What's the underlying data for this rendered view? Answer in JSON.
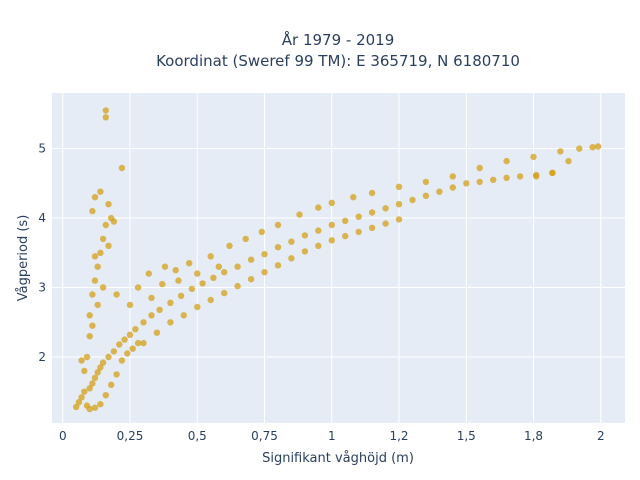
{
  "chart_data": {
    "type": "scatter",
    "title": [
      "År 1979 - 2019",
      "Koordinat (Sweref 99 TM): E 365719, N 6180710"
    ],
    "xlabel": "Signifikant våghöjd (m)",
    "ylabel": "Vågperiod (s)",
    "xlim": [
      -0.04,
      2.09
    ],
    "ylim": [
      1.05,
      5.8
    ],
    "xticks": [
      0,
      0.25,
      0.5,
      0.75,
      1,
      1.25,
      1.5,
      1.75,
      2
    ],
    "xtick_labels": [
      "0",
      "0,25",
      "0,5",
      "0,75",
      "1",
      "1,2",
      "1,5",
      "1,8",
      "2"
    ],
    "yticks": [
      2,
      3,
      4,
      5
    ],
    "ytick_labels": [
      "2",
      "3",
      "4",
      "5"
    ],
    "grid": true,
    "colors": {
      "marker": "#d4a017",
      "background": "#e5ecf6",
      "grid": "#ffffff"
    },
    "points": [
      [
        0.05,
        1.28
      ],
      [
        0.06,
        1.35
      ],
      [
        0.07,
        1.42
      ],
      [
        0.08,
        1.5
      ],
      [
        0.09,
        1.3
      ],
      [
        0.1,
        1.55
      ],
      [
        0.11,
        1.62
      ],
      [
        0.12,
        1.7
      ],
      [
        0.13,
        1.78
      ],
      [
        0.14,
        1.85
      ],
      [
        0.15,
        1.92
      ],
      [
        0.17,
        2.0
      ],
      [
        0.19,
        2.08
      ],
      [
        0.21,
        2.18
      ],
      [
        0.23,
        2.25
      ],
      [
        0.25,
        2.32
      ],
      [
        0.27,
        2.4
      ],
      [
        0.3,
        2.5
      ],
      [
        0.33,
        2.6
      ],
      [
        0.36,
        2.68
      ],
      [
        0.4,
        2.78
      ],
      [
        0.44,
        2.88
      ],
      [
        0.48,
        2.98
      ],
      [
        0.52,
        3.06
      ],
      [
        0.56,
        3.14
      ],
      [
        0.6,
        3.22
      ],
      [
        0.65,
        3.3
      ],
      [
        0.7,
        3.4
      ],
      [
        0.75,
        3.48
      ],
      [
        0.8,
        3.58
      ],
      [
        0.85,
        3.66
      ],
      [
        0.9,
        3.75
      ],
      [
        0.95,
        3.82
      ],
      [
        1.0,
        3.9
      ],
      [
        1.05,
        3.96
      ],
      [
        1.1,
        4.02
      ],
      [
        1.15,
        4.08
      ],
      [
        1.2,
        4.14
      ],
      [
        1.25,
        4.2
      ],
      [
        1.3,
        4.26
      ],
      [
        1.35,
        4.32
      ],
      [
        1.4,
        4.38
      ],
      [
        1.45,
        4.44
      ],
      [
        1.5,
        4.5
      ],
      [
        1.55,
        4.52
      ],
      [
        1.6,
        4.55
      ],
      [
        1.65,
        4.58
      ],
      [
        1.7,
        4.6
      ],
      [
        1.76,
        4.62
      ],
      [
        1.82,
        4.65
      ],
      [
        0.1,
        2.6
      ],
      [
        0.11,
        2.9
      ],
      [
        0.12,
        3.1
      ],
      [
        0.13,
        3.3
      ],
      [
        0.14,
        3.5
      ],
      [
        0.15,
        3.7
      ],
      [
        0.16,
        3.9
      ],
      [
        0.12,
        4.3
      ],
      [
        0.14,
        4.38
      ],
      [
        0.11,
        4.1
      ],
      [
        0.17,
        4.2
      ],
      [
        0.18,
        4.0
      ],
      [
        0.15,
        3.0
      ],
      [
        0.13,
        2.75
      ],
      [
        0.17,
        3.6
      ],
      [
        0.12,
        3.45
      ],
      [
        0.16,
        5.45
      ],
      [
        0.16,
        5.55
      ],
      [
        0.22,
        4.72
      ],
      [
        0.19,
        3.95
      ],
      [
        0.2,
        2.9
      ],
      [
        0.25,
        2.75
      ],
      [
        0.28,
        3.0
      ],
      [
        0.32,
        3.2
      ],
      [
        0.38,
        3.3
      ],
      [
        0.42,
        3.25
      ],
      [
        0.47,
        3.35
      ],
      [
        0.55,
        3.45
      ],
      [
        0.62,
        3.6
      ],
      [
        0.68,
        3.7
      ],
      [
        0.74,
        3.8
      ],
      [
        0.8,
        3.9
      ],
      [
        0.88,
        4.05
      ],
      [
        0.95,
        4.15
      ],
      [
        1.0,
        4.22
      ],
      [
        1.08,
        4.3
      ],
      [
        1.15,
        4.36
      ],
      [
        1.25,
        4.45
      ],
      [
        1.35,
        4.52
      ],
      [
        1.45,
        4.6
      ],
      [
        1.55,
        4.72
      ],
      [
        1.65,
        4.82
      ],
      [
        1.75,
        4.88
      ],
      [
        1.85,
        4.96
      ],
      [
        1.92,
        5.0
      ],
      [
        1.97,
        5.02
      ],
      [
        1.99,
        5.03
      ],
      [
        1.88,
        4.82
      ],
      [
        1.82,
        4.65
      ],
      [
        1.76,
        4.6
      ],
      [
        0.3,
        2.2
      ],
      [
        0.35,
        2.35
      ],
      [
        0.4,
        2.5
      ],
      [
        0.45,
        2.6
      ],
      [
        0.5,
        2.72
      ],
      [
        0.55,
        2.82
      ],
      [
        0.6,
        2.92
      ],
      [
        0.65,
        3.02
      ],
      [
        0.7,
        3.12
      ],
      [
        0.75,
        3.22
      ],
      [
        0.8,
        3.32
      ],
      [
        0.85,
        3.42
      ],
      [
        0.9,
        3.52
      ],
      [
        0.95,
        3.6
      ],
      [
        1.0,
        3.68
      ],
      [
        1.05,
        3.74
      ],
      [
        1.1,
        3.8
      ],
      [
        1.15,
        3.86
      ],
      [
        1.2,
        3.92
      ],
      [
        1.25,
        3.98
      ],
      [
        0.22,
        1.95
      ],
      [
        0.2,
        1.75
      ],
      [
        0.18,
        1.6
      ],
      [
        0.16,
        1.45
      ],
      [
        0.14,
        1.32
      ],
      [
        0.12,
        1.27
      ],
      [
        0.1,
        1.25
      ],
      [
        0.24,
        2.05
      ],
      [
        0.26,
        2.12
      ],
      [
        0.28,
        2.2
      ],
      [
        0.08,
        1.8
      ],
      [
        0.09,
        2.0
      ],
      [
        0.1,
        2.3
      ],
      [
        0.11,
        2.45
      ],
      [
        0.07,
        1.95
      ],
      [
        0.33,
        2.85
      ],
      [
        0.37,
        3.05
      ],
      [
        0.43,
        3.1
      ],
      [
        0.5,
        3.2
      ],
      [
        0.58,
        3.3
      ]
    ]
  }
}
